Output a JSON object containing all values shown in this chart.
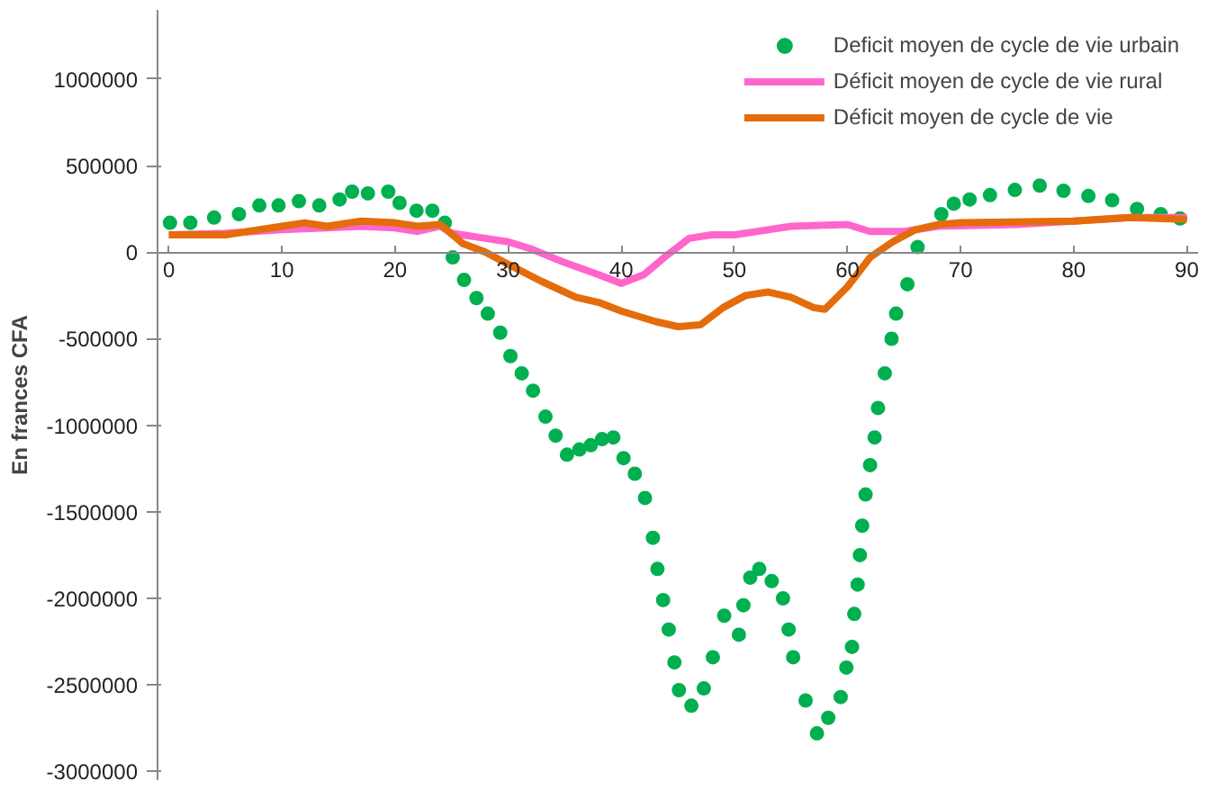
{
  "chart_data": {
    "type": "line",
    "ylabel": "En frances CFA",
    "xlim": [
      -1,
      91
    ],
    "ylim": [
      -3050000,
      1400000
    ],
    "xticks": [
      0,
      10,
      20,
      30,
      40,
      50,
      60,
      70,
      80,
      90
    ],
    "yticks": [
      -3000000,
      -2500000,
      -2000000,
      -1500000,
      -1000000,
      -500000,
      0,
      500000,
      1000000
    ],
    "grid": false,
    "legend": "top right",
    "line_style": "solid",
    "series": [
      {
        "name": "Deficit moyen de cycle de vie urbain",
        "color": "#00b050",
        "type": "scatter",
        "marker": "circle",
        "x": [
          0.1,
          1.9,
          4,
          6.2,
          8,
          9.7,
          11.5,
          13.3,
          15.1,
          16.2,
          17.6,
          19.4,
          20.4,
          21.9,
          23.3,
          24.4,
          25.1,
          26.1,
          27.2,
          28.2,
          29.3,
          30.2,
          31.2,
          32.2,
          33.3,
          34.2,
          35.2,
          36.3,
          37.3,
          38.3,
          39.3,
          40.2,
          41.2,
          42.1,
          42.8,
          43.2,
          43.7,
          44.2,
          44.7,
          45.1,
          46.2,
          47.3,
          48.1,
          49.1,
          50.4,
          50.8,
          51.4,
          52.2,
          53.3,
          54.3,
          54.8,
          55.2,
          56.3,
          57.3,
          58.3,
          59.4,
          59.9,
          60.4,
          60.6,
          60.9,
          61.1,
          61.3,
          61.6,
          62.0,
          62.4,
          62.7,
          63.3,
          63.9,
          64.3,
          65.3,
          66.2,
          68.3,
          69.4,
          70.8,
          72.6,
          74.8,
          77,
          79.1,
          81.3,
          83.4,
          85.6,
          87.7,
          89.4
        ],
        "values": [
          170000,
          170000,
          200000,
          220000,
          270000,
          270000,
          295000,
          270000,
          305000,
          350000,
          340000,
          350000,
          285000,
          240000,
          240000,
          170000,
          -30000,
          -160000,
          -265000,
          -355000,
          -465000,
          -600000,
          -700000,
          -800000,
          -950000,
          -1060000,
          -1170000,
          -1140000,
          -1115000,
          -1080000,
          -1070000,
          -1190000,
          -1280000,
          -1420000,
          -1650000,
          -1830000,
          -2010000,
          -2180000,
          -2370000,
          -2530000,
          -2620000,
          -2520000,
          -2340000,
          -2100000,
          -2210000,
          -2040000,
          -1880000,
          -1830000,
          -1900000,
          -2000000,
          -2180000,
          -2340000,
          -2590000,
          -2780000,
          -2690000,
          -2570000,
          -2400000,
          -2280000,
          -2090000,
          -1920000,
          -1750000,
          -1580000,
          -1400000,
          -1230000,
          -1070000,
          -900000,
          -700000,
          -500000,
          -355000,
          -185000,
          30000,
          220000,
          280000,
          305000,
          330000,
          360000,
          385000,
          355000,
          325000,
          300000,
          250000,
          220000,
          195000
        ]
      },
      {
        "name": "Déficit moyen de cycle de vie rural",
        "color": "#ff66cc",
        "x": [
          0,
          5,
          10,
          14,
          17,
          20,
          22,
          24,
          25,
          28,
          30,
          32,
          35,
          38,
          40,
          42,
          44,
          46,
          48,
          50,
          55,
          60,
          62,
          65,
          68,
          75,
          80,
          85,
          90
        ],
        "values": [
          100000,
          110000,
          130000,
          140000,
          150000,
          140000,
          120000,
          150000,
          110000,
          80000,
          60000,
          20000,
          -60000,
          -130000,
          -180000,
          -130000,
          -20000,
          80000,
          100000,
          100000,
          150000,
          160000,
          120000,
          120000,
          150000,
          160000,
          180000,
          200000,
          200000
        ]
      },
      {
        "name": "Déficit moyen de cycle de vie",
        "color": "#e46c0a",
        "x": [
          0,
          5,
          10,
          12,
          14,
          17,
          20,
          22,
          24,
          26,
          28,
          30,
          33,
          36,
          38,
          40,
          43,
          45,
          47,
          49,
          51,
          53,
          55,
          57,
          58,
          60,
          62,
          64,
          66,
          68,
          70,
          80,
          85,
          90
        ],
        "values": [
          100000,
          100000,
          150000,
          170000,
          150000,
          180000,
          170000,
          150000,
          160000,
          50000,
          0,
          -70000,
          -170000,
          -260000,
          -290000,
          -340000,
          -400000,
          -430000,
          -420000,
          -320000,
          -250000,
          -230000,
          -260000,
          -320000,
          -330000,
          -200000,
          -30000,
          60000,
          130000,
          160000,
          170000,
          180000,
          200000,
          190000
        ]
      }
    ]
  }
}
